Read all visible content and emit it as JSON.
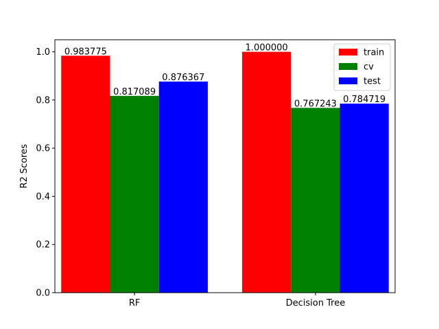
{
  "chart_data": {
    "type": "bar",
    "title": "",
    "xlabel": "",
    "ylabel": "R2 Scores",
    "categories": [
      "RF",
      "Decision Tree"
    ],
    "series": [
      {
        "name": "train",
        "color": "#ff0000",
        "values": [
          0.983775,
          1.0
        ],
        "labels": [
          "0.983775",
          "1.000000"
        ]
      },
      {
        "name": "cv",
        "color": "#008000",
        "values": [
          0.817089,
          0.767243
        ],
        "labels": [
          "0.817089",
          "0.767243"
        ]
      },
      {
        "name": "test",
        "color": "#0000ff",
        "values": [
          0.876367,
          0.784719
        ],
        "labels": [
          "0.876367",
          "0.784719"
        ]
      }
    ],
    "ylim": [
      0,
      1.05
    ],
    "yticks": [
      0.0,
      0.2,
      0.4,
      0.6,
      0.8,
      1.0
    ],
    "ytick_labels": [
      "0.0",
      "0.2",
      "0.4",
      "0.6",
      "0.8",
      "1.0"
    ],
    "grid": false,
    "legend_position": "top-right"
  }
}
